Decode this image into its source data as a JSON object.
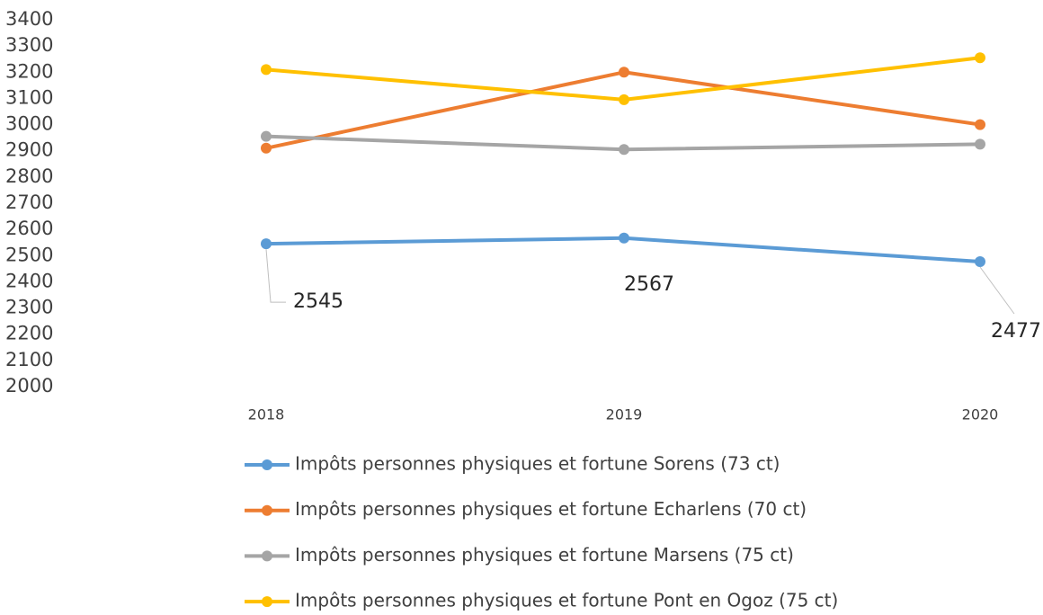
{
  "chart_data": {
    "type": "line",
    "categories": [
      "2018",
      "2019",
      "2020"
    ],
    "series": [
      {
        "name": "Impôts personnes physiques et fortune Sorens (73 ct)",
        "color": "#5b9bd5",
        "values": [
          2545,
          2567,
          2477
        ],
        "data_labels": true
      },
      {
        "name": "Impôts personnes physiques et fortune Echarlens (70 ct)",
        "color": "#ed7d31",
        "values": [
          2910,
          3200,
          3000
        ]
      },
      {
        "name": "Impôts personnes physiques et fortune Marsens (75 ct)",
        "color": "#a5a5a5",
        "values": [
          2955,
          2905,
          2925
        ]
      },
      {
        "name": "Impôts personnes physiques et fortune Pont en Ogoz (75 ct)",
        "color": "#ffc000",
        "values": [
          3210,
          3095,
          3255
        ]
      }
    ],
    "ylim": [
      2000,
      3400
    ],
    "yticks": [
      2000,
      2100,
      2200,
      2300,
      2400,
      2500,
      2600,
      2700,
      2800,
      2900,
      3000,
      3100,
      3200,
      3300,
      3400
    ],
    "grid": false,
    "legend": "bottom"
  }
}
